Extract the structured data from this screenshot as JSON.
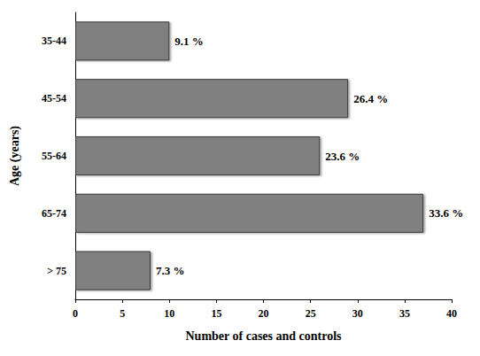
{
  "chart_data": {
    "type": "bar",
    "orientation": "horizontal",
    "categories": [
      "35-44",
      "45-54",
      "55-64",
      "65-74",
      "> 75"
    ],
    "values": [
      10,
      29,
      26,
      37,
      8
    ],
    "bar_labels": [
      "9.1 %",
      "26.4 %",
      "23.6 %",
      "33.6 %",
      "7.3 %"
    ],
    "color": "#808080",
    "x_label": "Number of cases and controls",
    "y_label": "Age (years)",
    "xlim": [
      0,
      40
    ],
    "xticks": [
      0,
      5,
      10,
      15,
      20,
      25,
      30,
      35,
      40
    ],
    "grid": false
  }
}
